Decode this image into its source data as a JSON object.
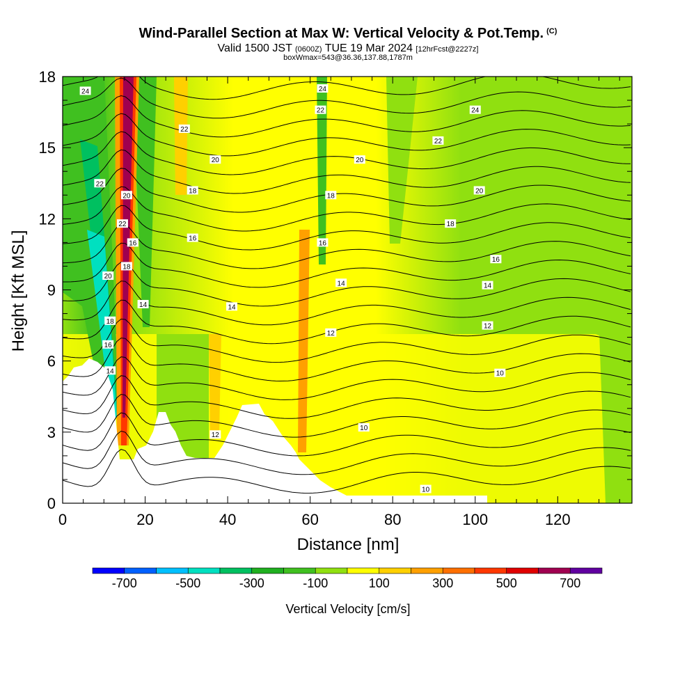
{
  "header": {
    "title": "Wind-Parallel Section at Max W: Vertical Velocity & Pot.Temp.",
    "copyright": "(C)",
    "valid_prefix": "Valid 1500 JST",
    "valid_utc": "(0600Z)",
    "valid_date": "TUE 19 Mar 2024",
    "forecast": "[12hrFcst@2227z]",
    "box_info": "boxWmax=543@36.36,137.88,1787m"
  },
  "chart_data": {
    "type": "heatmap",
    "xlabel": "Distance [nm]",
    "ylabel": "Height [Kft MSL]",
    "xlim": [
      0,
      138
    ],
    "ylim": [
      0,
      18
    ],
    "x_ticks": [
      0,
      20,
      40,
      60,
      80,
      100,
      120
    ],
    "y_ticks": [
      0,
      3,
      6,
      9,
      12,
      15,
      18
    ],
    "colorbar": {
      "label": "Vertical Velocity [cm/s]",
      "tick_labels": [
        "-700",
        "-500",
        "-300",
        "-100",
        "100",
        "300",
        "500",
        "700"
      ],
      "tick_values": [
        -700,
        -500,
        -300,
        -100,
        100,
        300,
        500,
        700
      ],
      "bounds": [
        -800,
        -700,
        -600,
        -500,
        -400,
        -300,
        -200,
        -100,
        0,
        100,
        200,
        300,
        400,
        500,
        600,
        700,
        800
      ],
      "colors": [
        "#0000ff",
        "#0060ff",
        "#00c0ff",
        "#00e0c0",
        "#00c060",
        "#20b020",
        "#40c020",
        "#90e010",
        "#ffff00",
        "#ffd000",
        "#ffa000",
        "#ff7000",
        "#ff3800",
        "#e00000",
        "#a00050",
        "#6000a0"
      ]
    },
    "contour_labels": [
      {
        "x": 5.5,
        "y": 17.4,
        "text": "24"
      },
      {
        "x": 63,
        "y": 17.5,
        "text": "24"
      },
      {
        "x": 100,
        "y": 16.6,
        "text": "24"
      },
      {
        "x": 62.5,
        "y": 16.6,
        "text": "22"
      },
      {
        "x": 29.5,
        "y": 15.8,
        "text": "22"
      },
      {
        "x": 91,
        "y": 15.3,
        "text": "22"
      },
      {
        "x": 37,
        "y": 14.5,
        "text": "20"
      },
      {
        "x": 72,
        "y": 14.5,
        "text": "20"
      },
      {
        "x": 101,
        "y": 13.2,
        "text": "20"
      },
      {
        "x": 9,
        "y": 13.5,
        "text": "22"
      },
      {
        "x": 15.5,
        "y": 13.0,
        "text": "20"
      },
      {
        "x": 14.5,
        "y": 11.8,
        "text": "22"
      },
      {
        "x": 31.5,
        "y": 13.2,
        "text": "18"
      },
      {
        "x": 65,
        "y": 13.0,
        "text": "18"
      },
      {
        "x": 94,
        "y": 11.8,
        "text": "18"
      },
      {
        "x": 17,
        "y": 11.0,
        "text": "16"
      },
      {
        "x": 31.5,
        "y": 11.2,
        "text": "16"
      },
      {
        "x": 63,
        "y": 11.0,
        "text": "16"
      },
      {
        "x": 105,
        "y": 10.3,
        "text": "16"
      },
      {
        "x": 15.5,
        "y": 10.0,
        "text": "18"
      },
      {
        "x": 11,
        "y": 9.6,
        "text": "20"
      },
      {
        "x": 67.5,
        "y": 9.3,
        "text": "14"
      },
      {
        "x": 103,
        "y": 9.2,
        "text": "14"
      },
      {
        "x": 19.5,
        "y": 8.4,
        "text": "14"
      },
      {
        "x": 41,
        "y": 8.3,
        "text": "14"
      },
      {
        "x": 11.5,
        "y": 7.7,
        "text": "18"
      },
      {
        "x": 65,
        "y": 7.2,
        "text": "12"
      },
      {
        "x": 103,
        "y": 7.5,
        "text": "12"
      },
      {
        "x": 11,
        "y": 6.7,
        "text": "16"
      },
      {
        "x": 11.5,
        "y": 5.6,
        "text": "14"
      },
      {
        "x": 106,
        "y": 5.5,
        "text": "10"
      },
      {
        "x": 37,
        "y": 2.9,
        "text": "12"
      },
      {
        "x": 73,
        "y": 3.2,
        "text": "10"
      },
      {
        "x": 88,
        "y": 0.6,
        "text": "10"
      }
    ]
  }
}
